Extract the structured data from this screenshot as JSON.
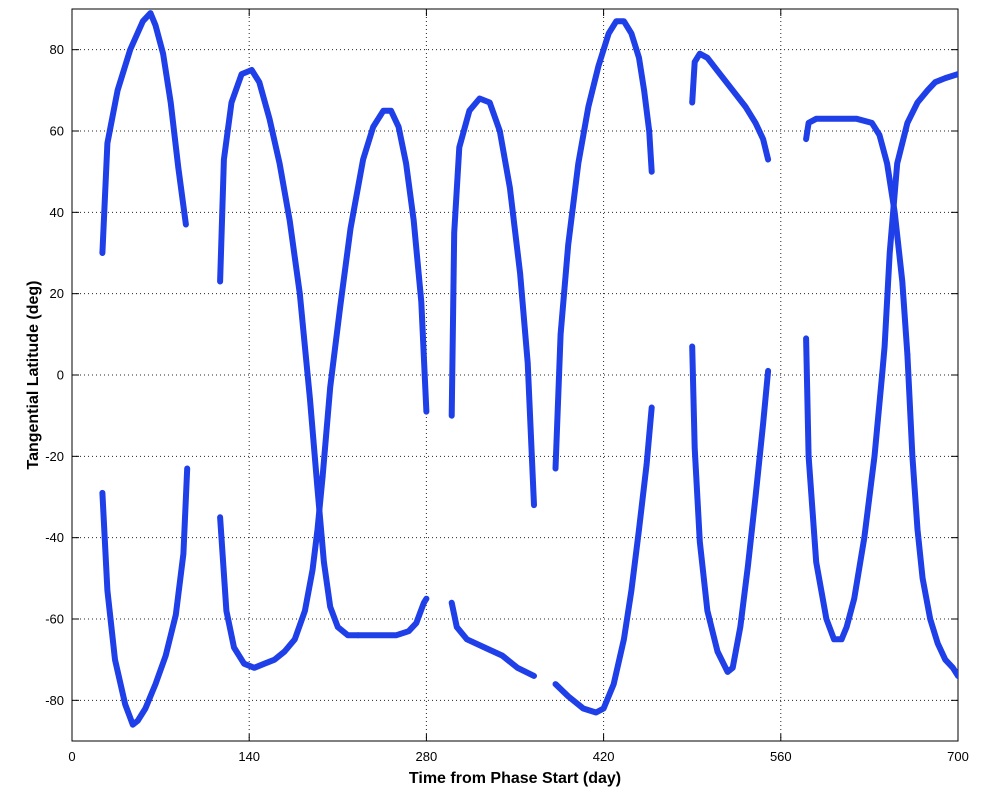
{
  "chart_data": {
    "type": "line",
    "title": "",
    "xlabel": "Time from Phase Start (day)",
    "ylabel": "Tangential Latitude (deg)",
    "xlim": [
      0,
      700
    ],
    "ylim": [
      -90,
      90
    ],
    "xticks": [
      0,
      140,
      280,
      420,
      560,
      700
    ],
    "yticks": [
      -80,
      -60,
      -40,
      -20,
      0,
      20,
      40,
      60,
      80
    ],
    "xtick_labels": [
      "0",
      "140",
      "280",
      "420",
      "560",
      "700"
    ],
    "ytick_labels": [
      "-80",
      "-60",
      "-40",
      "-20",
      "0",
      "20",
      "40",
      "60",
      "80"
    ],
    "grid": true,
    "legend": "none",
    "line_color": "#1f3fe8",
    "series": [
      {
        "x": [
          24,
          28,
          36,
          46,
          56,
          62,
          66,
          72,
          78,
          84,
          90
        ],
        "y": [
          30,
          57,
          70,
          80,
          87,
          89,
          86,
          79,
          67,
          51,
          37
        ]
      },
      {
        "x": [
          24,
          28,
          34,
          42,
          48,
          52,
          58,
          66,
          74,
          82,
          88,
          91
        ],
        "y": [
          -29,
          -53,
          -70,
          -81,
          -86,
          -85,
          -82,
          -76,
          -69,
          -59,
          -44,
          -23
        ]
      },
      {
        "x": [
          117,
          120,
          126,
          134,
          142,
          148,
          156,
          164,
          172,
          180,
          188,
          194,
          199,
          204,
          210,
          218,
          226
        ],
        "y": [
          23,
          53,
          67,
          74,
          75,
          72,
          63,
          52,
          38,
          20,
          -6,
          -28,
          -46,
          -57,
          -62,
          -64,
          -64
        ]
      },
      {
        "x": [
          117,
          122,
          128,
          136,
          144,
          152,
          160,
          168,
          176,
          184,
          190,
          194,
          198
        ],
        "y": [
          -35,
          -58,
          -67,
          -71,
          -72,
          -71,
          -70,
          -68,
          -65,
          -58,
          -48,
          -38,
          -25
        ]
      },
      {
        "x": [
          198,
          204,
          212,
          220,
          230,
          238,
          246,
          252,
          258,
          264,
          270,
          276,
          280
        ],
        "y": [
          -25,
          -3,
          17,
          36,
          53,
          61,
          65,
          65,
          61,
          52,
          38,
          18,
          -9
        ]
      },
      {
        "x": [
          226,
          240,
          256,
          266,
          272,
          278,
          280
        ],
        "y": [
          -64,
          -64,
          -64,
          -63,
          -61,
          -56,
          -55
        ]
      },
      {
        "x": [
          300,
          302,
          306,
          314,
          322,
          330,
          338,
          346,
          354,
          360,
          365
        ],
        "y": [
          -10,
          35,
          56,
          65,
          68,
          67,
          60,
          46,
          25,
          3,
          -32
        ]
      },
      {
        "x": [
          300,
          304,
          312,
          326,
          340,
          352,
          365
        ],
        "y": [
          -56,
          -62,
          -65,
          -67,
          -69,
          -72,
          -74
        ]
      },
      {
        "x": [
          382,
          386,
          392,
          400,
          408,
          416,
          424,
          430,
          436,
          442,
          448,
          452,
          456,
          458
        ],
        "y": [
          -23,
          10,
          32,
          52,
          66,
          76,
          84,
          87,
          87,
          84,
          78,
          70,
          60,
          50
        ]
      },
      {
        "x": [
          382,
          392,
          404,
          414,
          420,
          428,
          436,
          442,
          448,
          454,
          458
        ],
        "y": [
          -76,
          -79,
          -82,
          -83,
          -82,
          -76,
          -65,
          -53,
          -38,
          -22,
          -8
        ]
      },
      {
        "x": [
          490,
          492,
          496,
          502,
          512,
          522,
          532,
          540,
          546,
          550
        ],
        "y": [
          67,
          77,
          79,
          78,
          74,
          70,
          66,
          62,
          58,
          53
        ]
      },
      {
        "x": [
          490,
          492,
          496,
          502,
          510,
          518,
          522,
          528,
          534,
          540,
          546,
          550
        ],
        "y": [
          7,
          -18,
          -41,
          -58,
          -68,
          -73,
          -72,
          -62,
          -47,
          -30,
          -12,
          1
        ]
      },
      {
        "x": [
          580,
          582,
          588,
          600,
          620,
          632,
          638,
          644,
          650,
          656,
          660
        ],
        "y": [
          58,
          62,
          63,
          63,
          63,
          62,
          59,
          52,
          40,
          23,
          5
        ]
      },
      {
        "x": [
          580,
          582,
          588,
          596,
          602,
          608,
          612,
          618,
          626,
          634,
          640
        ],
        "y": [
          9,
          -20,
          -46,
          -60,
          -65,
          -65,
          -62,
          -55,
          -40,
          -20,
          0
        ]
      },
      {
        "x": [
          640,
          642,
          646,
          652,
          660,
          668,
          676,
          682,
          690,
          700,
          705
        ],
        "y": [
          0,
          7,
          30,
          52,
          62,
          67,
          70,
          72,
          73,
          74,
          73
        ]
      },
      {
        "x": [
          660,
          664,
          668,
          672,
          678,
          684,
          690,
          696,
          700,
          705
        ],
        "y": [
          5,
          -20,
          -38,
          -50,
          -60,
          -66,
          -70,
          -72,
          -74,
          -75
        ]
      }
    ]
  }
}
